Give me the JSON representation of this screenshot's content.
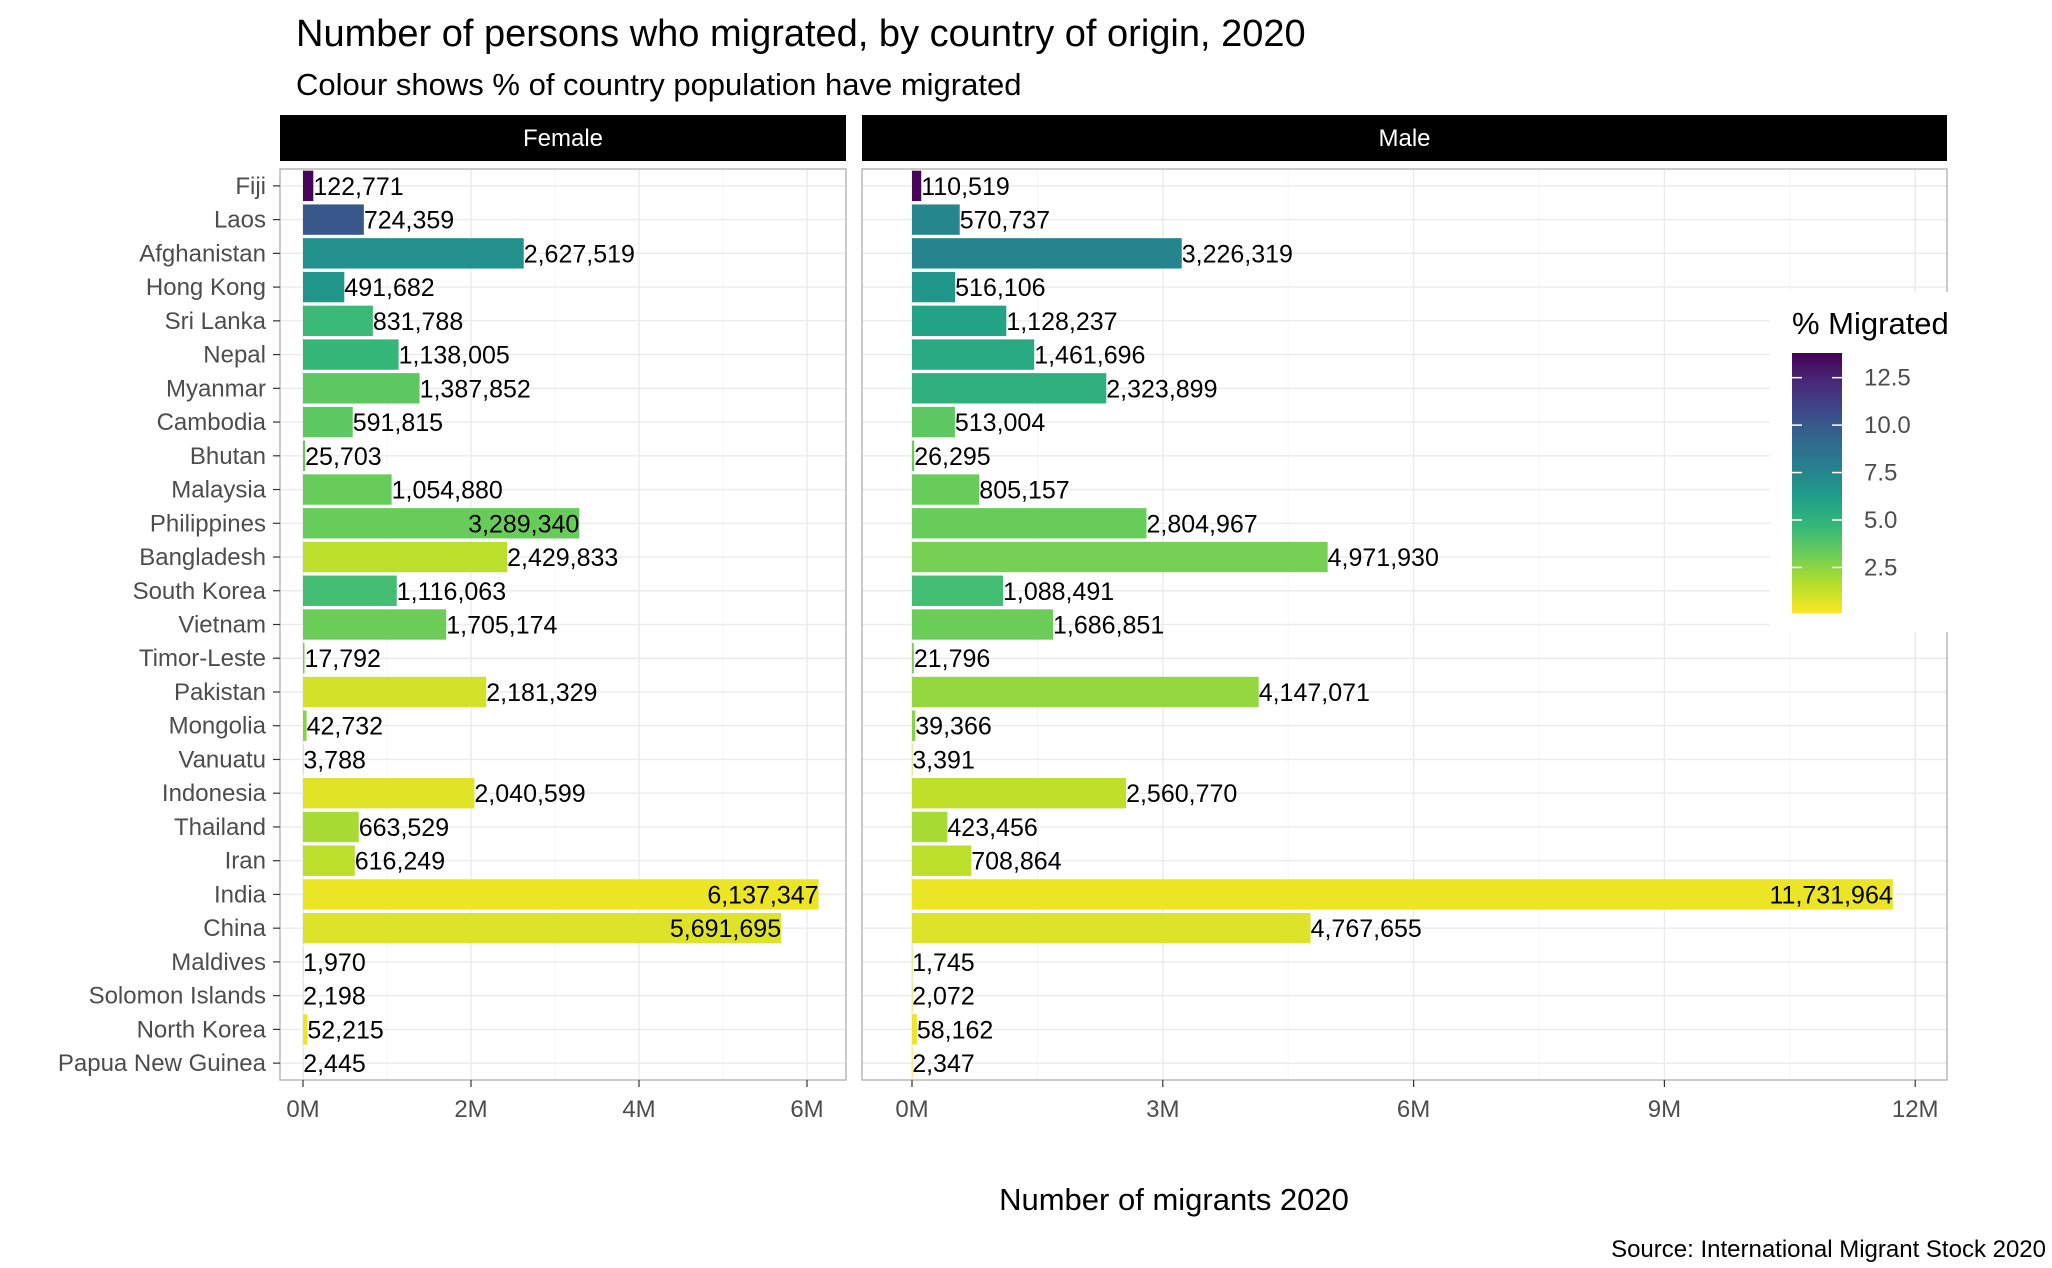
{
  "title": "Number of persons who migrated, by country of origin, 2020",
  "subtitle": "Colour shows % of country population have migrated",
  "caption": "Source: International Migrant Stock 2020",
  "chart_data": {
    "type": "bar",
    "orientation": "horizontal",
    "xlabel": "Number of migrants 2020",
    "categories": [
      "Fiji",
      "Laos",
      "Afghanistan",
      "Hong Kong",
      "Sri Lanka",
      "Nepal",
      "Myanmar",
      "Cambodia",
      "Bhutan",
      "Malaysia",
      "Philippines",
      "Bangladesh",
      "South Korea",
      "Vietnam",
      "Timor-Leste",
      "Pakistan",
      "Mongolia",
      "Vanuatu",
      "Indonesia",
      "Thailand",
      "Iran",
      "India",
      "China",
      "Maldives",
      "Solomon Islands",
      "North Korea",
      "Papua New Guinea"
    ],
    "facets": [
      {
        "name": "Female",
        "xlim": [
          0,
          6500000
        ],
        "xticks": [
          0,
          2000000,
          4000000,
          6000000
        ],
        "xtick_labels": [
          "0M",
          "2M",
          "4M",
          "6M"
        ],
        "values": [
          122771,
          724359,
          2627519,
          491682,
          831788,
          1138005,
          1387852,
          591815,
          25703,
          1054880,
          3289340,
          2429833,
          1116063,
          1705174,
          17792,
          2181329,
          42732,
          3788,
          2040599,
          663529,
          616249,
          6137347,
          5691695,
          1970,
          2198,
          52215,
          2445
        ],
        "labels": [
          "122,771",
          "724,359",
          "2,627,519",
          "491,682",
          "831,788",
          "1,138,005",
          "1,387,852",
          "591,815",
          "25,703",
          "1,054,880",
          "3,289,340",
          "2,429,833",
          "1,116,063",
          "1,705,174",
          "17,792",
          "2,181,329",
          "42,732",
          "3,788",
          "2,040,599",
          "663,529",
          "616,249",
          "6,137,347",
          "5,691,695",
          "1,970",
          "2,198",
          "52,215",
          "2,445"
        ],
        "pct_migrated": [
          13.6,
          10.0,
          6.9,
          6.6,
          4.5,
          4.7,
          3.6,
          3.6,
          3.3,
          3.3,
          3.3,
          1.5,
          4.3,
          3.2,
          2.9,
          1.0,
          2.6,
          1.4,
          0.7,
          1.9,
          1.5,
          0.45,
          0.8,
          0.8,
          0.6,
          0.4,
          0.15
        ],
        "inside_label": [
          false,
          false,
          false,
          false,
          false,
          false,
          false,
          false,
          false,
          false,
          true,
          false,
          false,
          false,
          false,
          false,
          false,
          false,
          false,
          false,
          false,
          true,
          true,
          false,
          false,
          false,
          false
        ]
      },
      {
        "name": "Male",
        "xlim": [
          0,
          12200000
        ],
        "xticks": [
          0,
          3000000,
          6000000,
          9000000,
          12000000
        ],
        "xtick_labels": [
          "0M",
          "3M",
          "6M",
          "9M",
          "12M"
        ],
        "values": [
          110519,
          570737,
          3226319,
          516106,
          1128237,
          1461696,
          2323899,
          513004,
          26295,
          805157,
          2804967,
          4971930,
          1088491,
          1686851,
          21796,
          4147071,
          39366,
          3391,
          2560770,
          423456,
          708864,
          11731964,
          4767655,
          1745,
          2072,
          58162,
          2347
        ],
        "labels": [
          "110,519",
          "570,737",
          "3,226,319",
          "516,106",
          "1,128,237",
          "1,461,696",
          "2,323,899",
          "513,004",
          "26,295",
          "805,157",
          "2,804,967",
          "4,971,930",
          "1,088,491",
          "1,686,851",
          "21,796",
          "4,147,071",
          "39,366",
          "3,391",
          "2,560,770",
          "423,456",
          "708,864",
          "11,731,964",
          "4,767,655",
          "1,745",
          "2,072",
          "58,162",
          "2,347"
        ],
        "pct_migrated": [
          13.6,
          7.5,
          7.6,
          6.6,
          5.9,
          5.5,
          5.1,
          3.6,
          3.3,
          3.3,
          3.3,
          3.0,
          4.3,
          3.2,
          2.9,
          2.3,
          2.6,
          1.4,
          1.4,
          1.9,
          1.5,
          0.45,
          0.8,
          0.8,
          0.6,
          0.4,
          0.15
        ],
        "inside_label": [
          false,
          false,
          false,
          false,
          false,
          false,
          false,
          false,
          false,
          false,
          false,
          false,
          false,
          false,
          false,
          false,
          false,
          false,
          false,
          false,
          false,
          true,
          false,
          false,
          false,
          false,
          false
        ]
      }
    ],
    "legend": {
      "title": "% Migrated",
      "placement": "right, inside Male panel",
      "scale": "viridis",
      "range": [
        0.1,
        13.8
      ],
      "ticks": [
        12.5,
        10.0,
        7.5,
        5.0,
        2.5
      ],
      "tick_labels": [
        "12.5",
        "10.0",
        "7.5",
        "5.0",
        "2.5"
      ]
    },
    "grid": true,
    "colors": {
      "strip_background": "#000000",
      "strip_text": "#ffffff",
      "panel_border": "#b3b3b3",
      "grid_major": "#ebebeb",
      "grid_minor": "#f5f5f5",
      "axis_text": "#4d4d4d",
      "viridis_stops": [
        "#440154",
        "#482878",
        "#3e4989",
        "#31688e",
        "#26828e",
        "#1f9e89",
        "#35b779",
        "#6ece58",
        "#b5de2b",
        "#fde725"
      ]
    }
  }
}
